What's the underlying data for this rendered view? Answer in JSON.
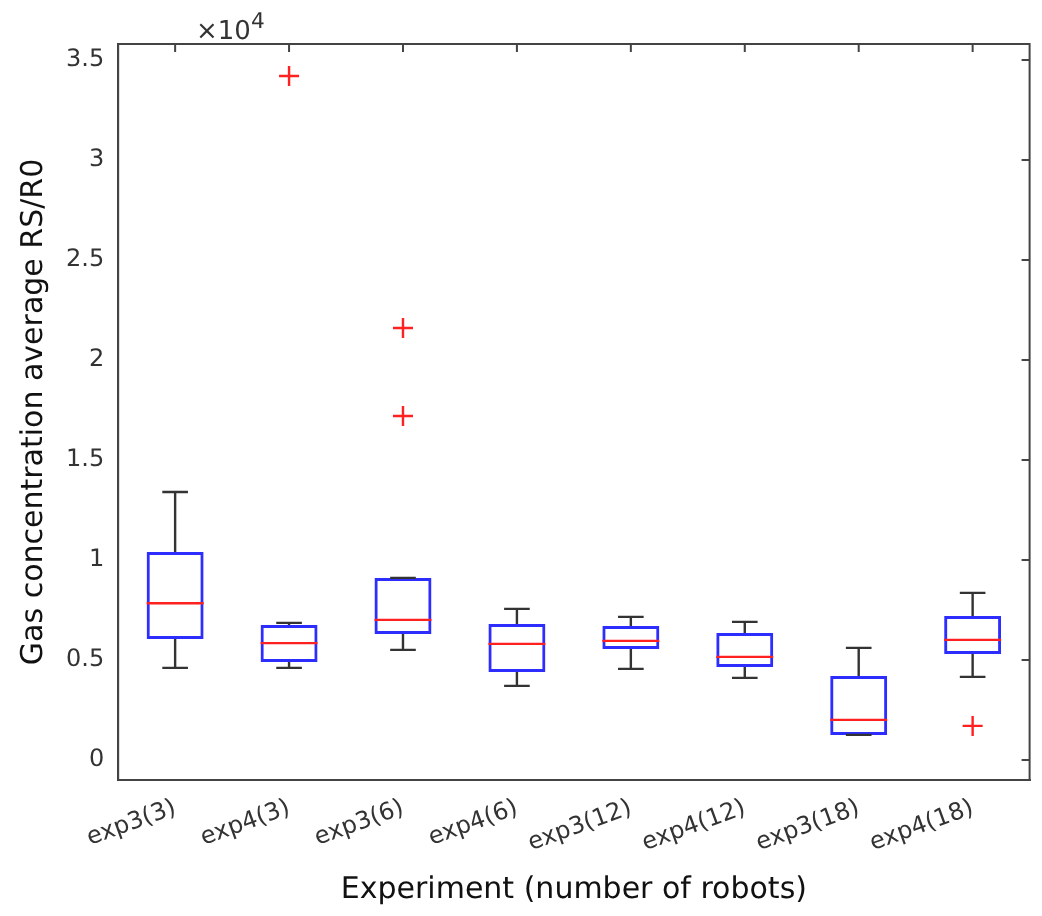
{
  "chart_data": {
    "type": "box",
    "xlabel": "Experiment (number of robots)",
    "ylabel": "Gas concentration average RS/R0",
    "annotations": [
      "×10$^{4}$"
    ],
    "categories": [
      "exp3(3)",
      "exp4(3)",
      "exp3(6)",
      "exp4(6)",
      "exp3(12)",
      "exp4(12)",
      "exp3(18)",
      "exp4(18)"
    ],
    "boxes": [
      {
        "low": 0.46,
        "q1": 0.605,
        "median": 0.783,
        "q3": 1.04,
        "high": 1.34
      },
      {
        "low": 0.46,
        "q1": 0.49,
        "median": 0.584,
        "q3": 0.675,
        "high": 0.685,
        "outliers": [
          3.42
        ]
      },
      {
        "low": 0.55,
        "q1": 0.63,
        "median": 0.7,
        "q3": 0.91,
        "high": 0.91,
        "outliers": [
          2.16,
          1.72
        ]
      },
      {
        "low": 0.37,
        "q1": 0.44,
        "median": 0.58,
        "q3": 0.68,
        "high": 0.755
      },
      {
        "low": 0.455,
        "q1": 0.555,
        "median": 0.595,
        "q3": 0.67,
        "high": 0.715
      },
      {
        "low": 0.41,
        "q1": 0.465,
        "median": 0.515,
        "q3": 0.635,
        "high": 0.69
      },
      {
        "low": 0.125,
        "q1": 0.125,
        "median": 0.2,
        "q3": 0.42,
        "high": 0.56
      },
      {
        "low": 0.415,
        "q1": 0.53,
        "median": 0.6,
        "q3": 0.72,
        "high": 0.835,
        "outliers": [
          0.17
        ]
      }
    ],
    "ylim": [
      -0.1,
      3.58
    ],
    "yticks": [
      0,
      0.5,
      1,
      1.5,
      2,
      2.5,
      3,
      3.5
    ],
    "grid": false,
    "legend": false
  }
}
